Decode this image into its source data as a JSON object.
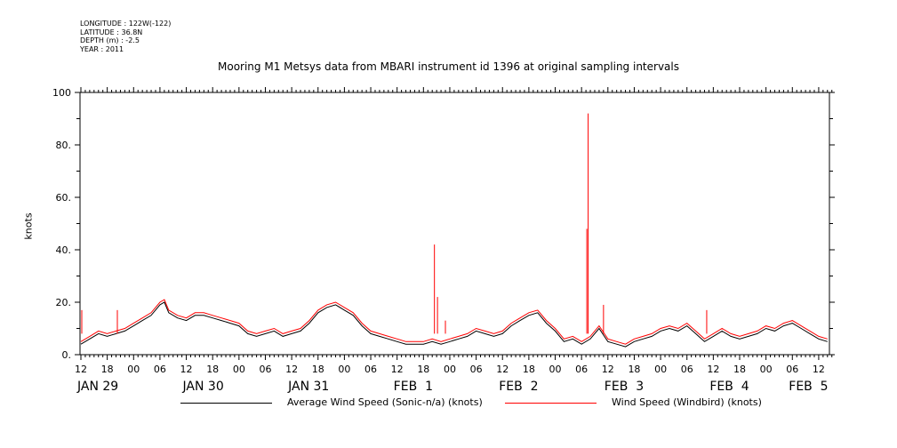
{
  "meta": {
    "longitude": "LONGITUDE : 122W(-122)",
    "latitude": "LATITUDE : 36.8N",
    "depth": "DEPTH (m) : -2.5",
    "year": "YEAR : 2011"
  },
  "chart_data": {
    "type": "line",
    "title": "Mooring M1 Metsys data from MBARI instrument id 1396 at original sampling intervals",
    "xlabel": "",
    "ylabel": "knots",
    "xlim": [
      0,
      171
    ],
    "ylim": [
      0,
      100
    ],
    "y_ticks": [
      {
        "value": 0,
        "label": "0."
      },
      {
        "value": 20,
        "label": "20."
      },
      {
        "value": 40,
        "label": "40."
      },
      {
        "value": 60,
        "label": "60."
      },
      {
        "value": 80,
        "label": "80."
      },
      {
        "value": 100,
        "label": "100"
      }
    ],
    "x_hour_ticks": [
      {
        "h": 0,
        "label": "12"
      },
      {
        "h": 6,
        "label": "18"
      },
      {
        "h": 12,
        "label": "00"
      },
      {
        "h": 18,
        "label": "06"
      },
      {
        "h": 24,
        "label": "12"
      },
      {
        "h": 30,
        "label": "18"
      },
      {
        "h": 36,
        "label": "00"
      },
      {
        "h": 42,
        "label": "06"
      },
      {
        "h": 48,
        "label": "12"
      },
      {
        "h": 54,
        "label": "18"
      },
      {
        "h": 60,
        "label": "00"
      },
      {
        "h": 66,
        "label": "06"
      },
      {
        "h": 72,
        "label": "12"
      },
      {
        "h": 78,
        "label": "18"
      },
      {
        "h": 84,
        "label": "00"
      },
      {
        "h": 90,
        "label": "06"
      },
      {
        "h": 96,
        "label": "12"
      },
      {
        "h": 102,
        "label": "18"
      },
      {
        "h": 108,
        "label": "00"
      },
      {
        "h": 114,
        "label": "06"
      },
      {
        "h": 120,
        "label": "12"
      },
      {
        "h": 126,
        "label": "18"
      },
      {
        "h": 132,
        "label": "00"
      },
      {
        "h": 138,
        "label": "06"
      },
      {
        "h": 144,
        "label": "12"
      },
      {
        "h": 150,
        "label": "18"
      },
      {
        "h": 156,
        "label": "00"
      },
      {
        "h": 162,
        "label": "06"
      },
      {
        "h": 168,
        "label": "12"
      }
    ],
    "x_day_labels": [
      {
        "h": 0,
        "label": "JAN 29"
      },
      {
        "h": 24,
        "label": "JAN 30"
      },
      {
        "h": 48,
        "label": "JAN 31"
      },
      {
        "h": 72,
        "label": "FEB  1"
      },
      {
        "h": 96,
        "label": "FEB  2"
      },
      {
        "h": 120,
        "label": "FEB  3"
      },
      {
        "h": 144,
        "label": "FEB  4"
      },
      {
        "h": 162,
        "label": "FEB  5"
      }
    ],
    "series": [
      {
        "name": "Average Wind Speed (Sonic-n/a) (knots)",
        "color": "#000000",
        "x": [
          0,
          2,
          4,
          6,
          8,
          10,
          12,
          14,
          16,
          18,
          19,
          20,
          22,
          24,
          26,
          28,
          30,
          32,
          34,
          36,
          38,
          40,
          42,
          44,
          46,
          48,
          50,
          52,
          54,
          56,
          58,
          60,
          62,
          64,
          66,
          68,
          70,
          72,
          74,
          76,
          78,
          80,
          82,
          84,
          86,
          88,
          90,
          92,
          94,
          96,
          98,
          100,
          102,
          104,
          106,
          108,
          110,
          112,
          114,
          116,
          118,
          120,
          122,
          124,
          126,
          128,
          130,
          132,
          134,
          136,
          138,
          140,
          142,
          144,
          146,
          148,
          150,
          152,
          154,
          156,
          158,
          160,
          162,
          164,
          166,
          168,
          170
        ],
        "values": [
          4,
          6,
          8,
          7,
          8,
          9,
          11,
          13,
          15,
          19,
          20,
          16,
          14,
          13,
          15,
          15,
          14,
          13,
          12,
          11,
          8,
          7,
          8,
          9,
          7,
          8,
          9,
          12,
          16,
          18,
          19,
          17,
          15,
          11,
          8,
          7,
          6,
          5,
          4,
          4,
          4,
          5,
          4,
          5,
          6,
          7,
          9,
          8,
          7,
          8,
          11,
          13,
          15,
          16,
          12,
          9,
          5,
          6,
          4,
          6,
          10,
          5,
          4,
          3,
          5,
          6,
          7,
          9,
          10,
          9,
          11,
          8,
          5,
          7,
          9,
          7,
          6,
          7,
          8,
          10,
          9,
          11,
          12,
          10,
          8,
          6,
          5
        ]
      },
      {
        "name": "Wind Speed (Windbird) (knots)",
        "color": "#ff0000",
        "x": [
          0,
          2,
          4,
          6,
          8,
          10,
          12,
          14,
          16,
          18,
          19,
          20,
          22,
          24,
          26,
          28,
          30,
          32,
          34,
          36,
          38,
          40,
          42,
          44,
          46,
          48,
          50,
          52,
          54,
          56,
          58,
          60,
          62,
          64,
          66,
          68,
          70,
          72,
          74,
          76,
          78,
          80,
          82,
          84,
          86,
          88,
          90,
          92,
          94,
          96,
          98,
          100,
          102,
          104,
          106,
          108,
          110,
          112,
          114,
          116,
          118,
          120,
          122,
          124,
          126,
          128,
          130,
          132,
          134,
          136,
          138,
          140,
          142,
          144,
          146,
          148,
          150,
          152,
          154,
          156,
          158,
          160,
          162,
          164,
          166,
          168,
          170
        ],
        "values": [
          5,
          7,
          9,
          8,
          9,
          10,
          12,
          14,
          16,
          20,
          21,
          17,
          15,
          14,
          16,
          16,
          15,
          14,
          13,
          12,
          9,
          8,
          9,
          10,
          8,
          9,
          10,
          13,
          17,
          19,
          20,
          18,
          16,
          12,
          9,
          8,
          7,
          6,
          5,
          5,
          5,
          6,
          5,
          6,
          7,
          8,
          10,
          9,
          8,
          9,
          12,
          14,
          16,
          17,
          13,
          10,
          6,
          7,
          5,
          7,
          11,
          6,
          5,
          4,
          6,
          7,
          8,
          10,
          11,
          10,
          12,
          9,
          6,
          8,
          10,
          8,
          7,
          8,
          9,
          11,
          10,
          12,
          13,
          11,
          9,
          7,
          6
        ],
        "spikes": [
          {
            "x": 80.5,
            "value": 42
          },
          {
            "x": 81.2,
            "value": 22
          },
          {
            "x": 115.5,
            "value": 92
          },
          {
            "x": 115.2,
            "value": 48
          },
          {
            "x": 119,
            "value": 19
          },
          {
            "x": 0.2,
            "value": 17
          },
          {
            "x": 8.3,
            "value": 17
          },
          {
            "x": 142.5,
            "value": 17
          },
          {
            "x": 83,
            "value": 13
          }
        ]
      }
    ]
  }
}
